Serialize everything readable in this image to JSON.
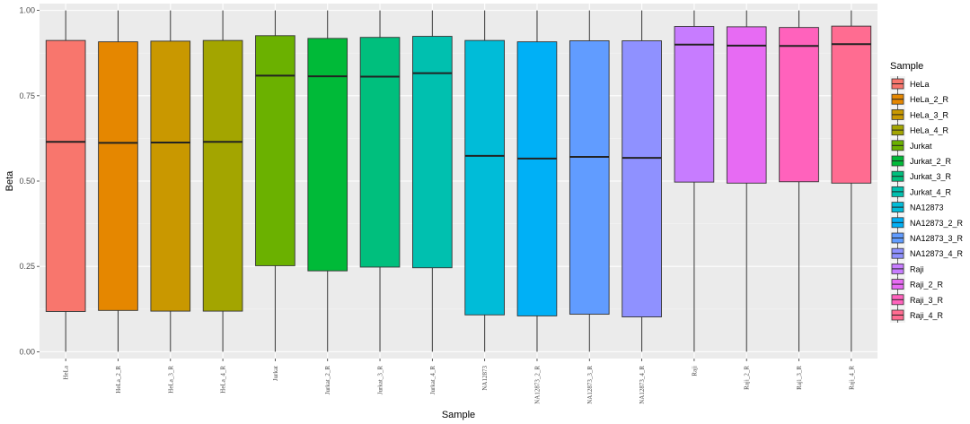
{
  "chart_data": {
    "type": "boxplot",
    "title": "",
    "xlabel": "Sample",
    "ylabel": "Beta",
    "ylim": [
      -0.02,
      1.02
    ],
    "yticks": [
      0.0,
      0.25,
      0.5,
      0.75,
      1.0
    ],
    "ytick_labels": [
      "0.00",
      "0.25",
      "0.50",
      "0.75",
      "1.00"
    ],
    "grid": true,
    "legend": {
      "title": "Sample",
      "position": "right"
    },
    "categories": [
      "HeLa",
      "HeLa_2_R",
      "HeLa_3_R",
      "HeLa_4_R",
      "Jurkat",
      "Jurkat_2_R",
      "Jurkat_3_R",
      "Jurkat_4_R",
      "NA12873",
      "NA12873_2_R",
      "NA12873_3_R",
      "NA12873_4_R",
      "Raji",
      "Raji_2_R",
      "Raji_3_R",
      "Raji_4_R"
    ],
    "colors": [
      "#F8766D",
      "#E58700",
      "#C99800",
      "#A3A500",
      "#6BB100",
      "#00BA38",
      "#00BF7D",
      "#00C0AF",
      "#00BCD8",
      "#00B0F6",
      "#619CFF",
      "#8F91FF",
      "#C77CFF",
      "#E76BF3",
      "#FF62BC",
      "#FF6C91"
    ],
    "series": [
      {
        "name": "HeLa",
        "min": 0.0,
        "q1": 0.118,
        "median": 0.615,
        "q3": 0.912,
        "max": 1.0
      },
      {
        "name": "HeLa_2_R",
        "min": 0.0,
        "q1": 0.121,
        "median": 0.612,
        "q3": 0.908,
        "max": 1.0
      },
      {
        "name": "HeLa_3_R",
        "min": 0.0,
        "q1": 0.119,
        "median": 0.613,
        "q3": 0.91,
        "max": 1.0
      },
      {
        "name": "HeLa_4_R",
        "min": 0.0,
        "q1": 0.119,
        "median": 0.615,
        "q3": 0.912,
        "max": 1.0
      },
      {
        "name": "Jurkat",
        "min": 0.0,
        "q1": 0.252,
        "median": 0.809,
        "q3": 0.926,
        "max": 1.0
      },
      {
        "name": "Jurkat_2_R",
        "min": 0.0,
        "q1": 0.237,
        "median": 0.807,
        "q3": 0.918,
        "max": 1.0
      },
      {
        "name": "Jurkat_3_R",
        "min": 0.0,
        "q1": 0.248,
        "median": 0.806,
        "q3": 0.921,
        "max": 1.0
      },
      {
        "name": "Jurkat_4_R",
        "min": 0.0,
        "q1": 0.246,
        "median": 0.816,
        "q3": 0.924,
        "max": 1.0
      },
      {
        "name": "NA12873",
        "min": 0.0,
        "q1": 0.108,
        "median": 0.574,
        "q3": 0.912,
        "max": 1.0
      },
      {
        "name": "NA12873_2_R",
        "min": 0.0,
        "q1": 0.105,
        "median": 0.566,
        "q3": 0.908,
        "max": 1.0
      },
      {
        "name": "NA12873_3_R",
        "min": 0.0,
        "q1": 0.11,
        "median": 0.571,
        "q3": 0.911,
        "max": 1.0
      },
      {
        "name": "NA12873_4_R",
        "min": 0.0,
        "q1": 0.102,
        "median": 0.568,
        "q3": 0.911,
        "max": 1.0
      },
      {
        "name": "Raji",
        "min": 0.0,
        "q1": 0.497,
        "median": 0.9,
        "q3": 0.953,
        "max": 1.0
      },
      {
        "name": "Raji_2_R",
        "min": 0.0,
        "q1": 0.494,
        "median": 0.897,
        "q3": 0.952,
        "max": 1.0
      },
      {
        "name": "Raji_3_R",
        "min": 0.0,
        "q1": 0.498,
        "median": 0.896,
        "q3": 0.95,
        "max": 1.0
      },
      {
        "name": "Raji_4_R",
        "min": 0.0,
        "q1": 0.494,
        "median": 0.901,
        "q3": 0.954,
        "max": 1.0
      }
    ]
  }
}
